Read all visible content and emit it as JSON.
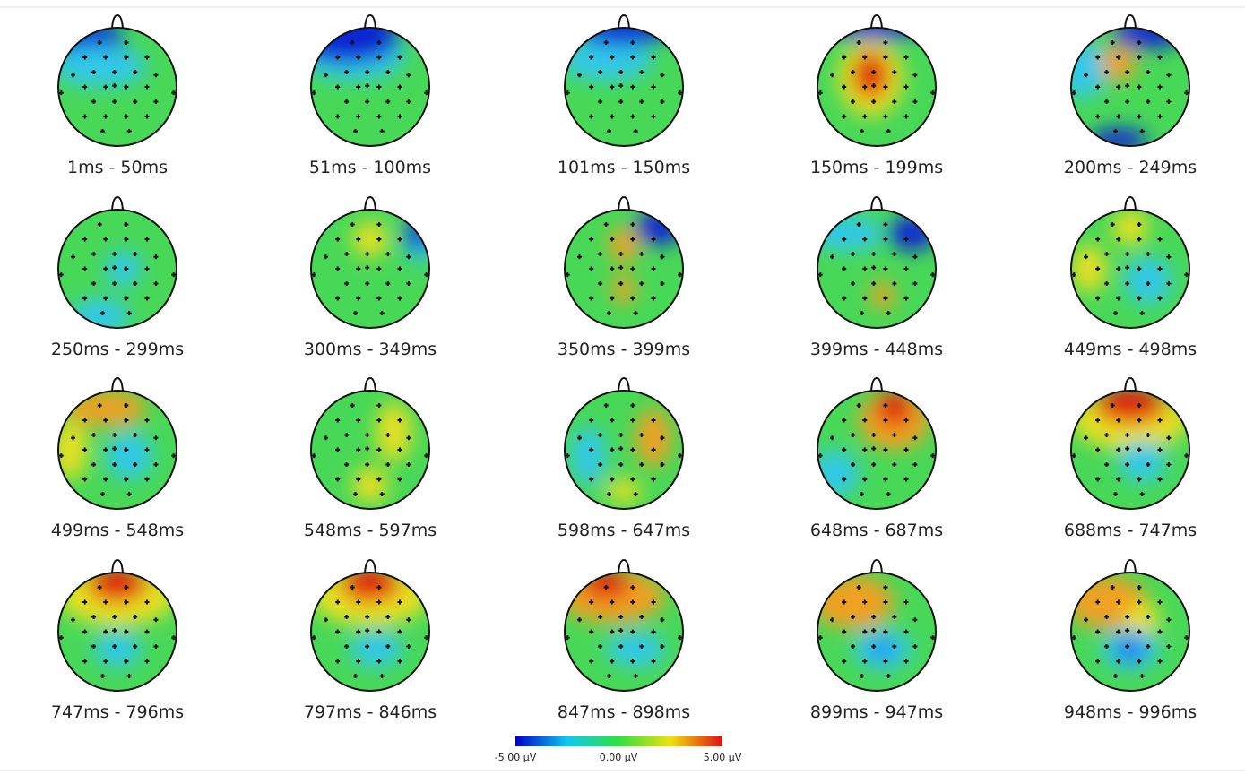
{
  "maps": [
    {
      "label": "1ms - 50ms"
    },
    {
      "label": "51ms - 100ms"
    },
    {
      "label": "101ms - 150ms"
    },
    {
      "label": "150ms - 199ms"
    },
    {
      "label": "200ms - 249ms"
    },
    {
      "label": "250ms - 299ms"
    },
    {
      "label": "300ms - 349ms"
    },
    {
      "label": "350ms - 399ms"
    },
    {
      "label": "399ms - 448ms"
    },
    {
      "label": "449ms - 498ms"
    },
    {
      "label": "499ms - 548ms"
    },
    {
      "label": "548ms - 597ms"
    },
    {
      "label": "598ms - 647ms"
    },
    {
      "label": "648ms - 687ms"
    },
    {
      "label": "688ms - 747ms"
    },
    {
      "label": "747ms - 796ms"
    },
    {
      "label": "797ms - 846ms"
    },
    {
      "label": "847ms - 898ms"
    },
    {
      "label": "899ms - 947ms"
    },
    {
      "label": "948ms - 996ms"
    }
  ],
  "colorbar": {
    "min_label": "-5.00 µV",
    "mid_label": "0.00 µV",
    "max_label": "5.00 µV"
  }
}
